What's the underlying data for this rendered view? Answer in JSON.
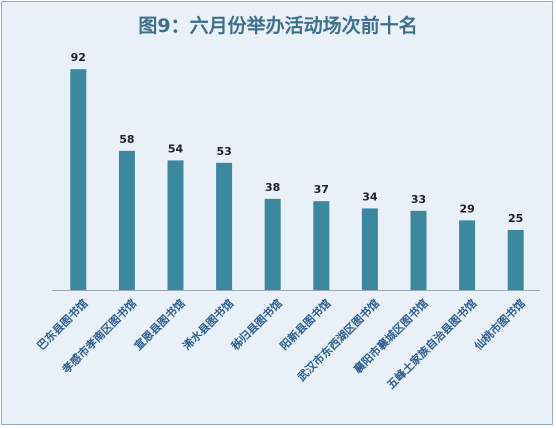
{
  "chart_data": {
    "type": "bar",
    "title": "图9：六月份举办活动场次前十名",
    "categories": [
      "巴东县图书馆",
      "孝感市孝南区图书馆",
      "宣恩县图书馆",
      "浠水县图书馆",
      "秭归县图书馆",
      "阳新县图书馆",
      "武汉市东西湖区图书馆",
      "襄阳市襄城区图书馆",
      "五峰土家族自治县图书馆",
      "仙桃市图书馆"
    ],
    "values": [
      92,
      58,
      54,
      53,
      38,
      37,
      34,
      33,
      29,
      25
    ],
    "xlabel": "",
    "ylabel": "",
    "ylim": [
      0,
      100
    ],
    "grid": false,
    "data_labels": true,
    "colors": {
      "bar": "#3b889f",
      "title": "#3d6f8a",
      "background": "#e9f0f8",
      "tick": "#2e5f8f"
    }
  }
}
